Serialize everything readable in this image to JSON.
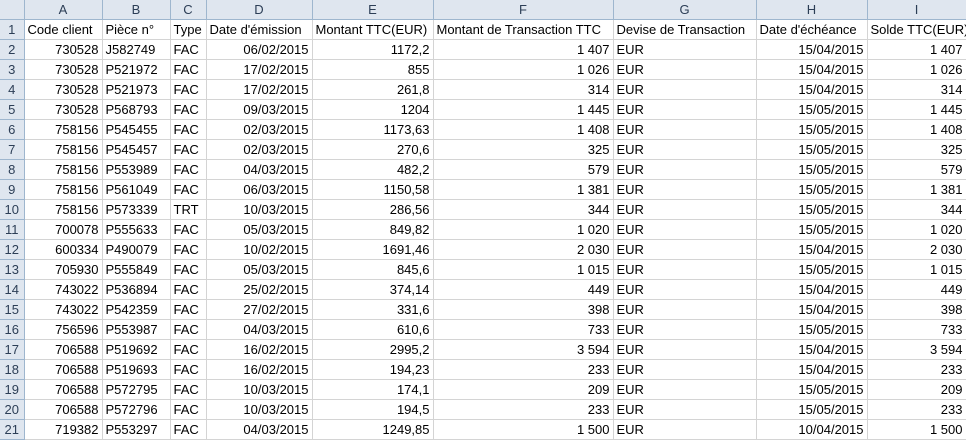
{
  "columns": [
    "A",
    "B",
    "C",
    "D",
    "E",
    "F",
    "G",
    "H",
    "I"
  ],
  "headers": [
    "Code client",
    "Pièce n°",
    "Type",
    "Date d'émission",
    "Montant TTC(EUR)",
    "Montant de Transaction TTC",
    "Devise de Transaction",
    "Date d'échéance",
    "Solde TTC(EUR)"
  ],
  "rows": [
    [
      "730528",
      "J582749",
      "FAC",
      "06/02/2015",
      "1172,2",
      "1 407",
      "EUR",
      "15/04/2015",
      "1 407"
    ],
    [
      "730528",
      "P521972",
      "FAC",
      "17/02/2015",
      "855",
      "1 026",
      "EUR",
      "15/04/2015",
      "1 026"
    ],
    [
      "730528",
      "P521973",
      "FAC",
      "17/02/2015",
      "261,8",
      "314",
      "EUR",
      "15/04/2015",
      "314"
    ],
    [
      "730528",
      "P568793",
      "FAC",
      "09/03/2015",
      "1204",
      "1 445",
      "EUR",
      "15/05/2015",
      "1 445"
    ],
    [
      "758156",
      "P545455",
      "FAC",
      "02/03/2015",
      "1173,63",
      "1 408",
      "EUR",
      "15/05/2015",
      "1 408"
    ],
    [
      "758156",
      "P545457",
      "FAC",
      "02/03/2015",
      "270,6",
      "325",
      "EUR",
      "15/05/2015",
      "325"
    ],
    [
      "758156",
      "P553989",
      "FAC",
      "04/03/2015",
      "482,2",
      "579",
      "EUR",
      "15/05/2015",
      "579"
    ],
    [
      "758156",
      "P561049",
      "FAC",
      "06/03/2015",
      "1150,58",
      "1 381",
      "EUR",
      "15/05/2015",
      "1 381"
    ],
    [
      "758156",
      "P573339",
      "TRT",
      "10/03/2015",
      "286,56",
      "344",
      "EUR",
      "15/05/2015",
      "344"
    ],
    [
      "700078",
      "P555633",
      "FAC",
      "05/03/2015",
      "849,82",
      "1 020",
      "EUR",
      "15/05/2015",
      "1 020"
    ],
    [
      "600334",
      "P490079",
      "FAC",
      "10/02/2015",
      "1691,46",
      "2 030",
      "EUR",
      "15/04/2015",
      "2 030"
    ],
    [
      "705930",
      "P555849",
      "FAC",
      "05/03/2015",
      "845,6",
      "1 015",
      "EUR",
      "15/05/2015",
      "1 015"
    ],
    [
      "743022",
      "P536894",
      "FAC",
      "25/02/2015",
      "374,14",
      "449",
      "EUR",
      "15/04/2015",
      "449"
    ],
    [
      "743022",
      "P542359",
      "FAC",
      "27/02/2015",
      "331,6",
      "398",
      "EUR",
      "15/04/2015",
      "398"
    ],
    [
      "756596",
      "P553987",
      "FAC",
      "04/03/2015",
      "610,6",
      "733",
      "EUR",
      "15/05/2015",
      "733"
    ],
    [
      "706588",
      "P519692",
      "FAC",
      "16/02/2015",
      "2995,2",
      "3 594",
      "EUR",
      "15/04/2015",
      "3 594"
    ],
    [
      "706588",
      "P519693",
      "FAC",
      "16/02/2015",
      "194,23",
      "233",
      "EUR",
      "15/04/2015",
      "233"
    ],
    [
      "706588",
      "P572795",
      "FAC",
      "10/03/2015",
      "174,1",
      "209",
      "EUR",
      "15/05/2015",
      "209"
    ],
    [
      "706588",
      "P572796",
      "FAC",
      "10/03/2015",
      "194,5",
      "233",
      "EUR",
      "15/05/2015",
      "233"
    ],
    [
      "719382",
      "P553297",
      "FAC",
      "04/03/2015",
      "1249,85",
      "1 500",
      "EUR",
      "10/04/2015",
      "1 500"
    ]
  ],
  "row_numbers": [
    "1",
    "2",
    "3",
    "4",
    "5",
    "6",
    "7",
    "8",
    "9",
    "10",
    "11",
    "12",
    "13",
    "14",
    "15",
    "16",
    "17",
    "18",
    "19",
    "20",
    "21"
  ]
}
